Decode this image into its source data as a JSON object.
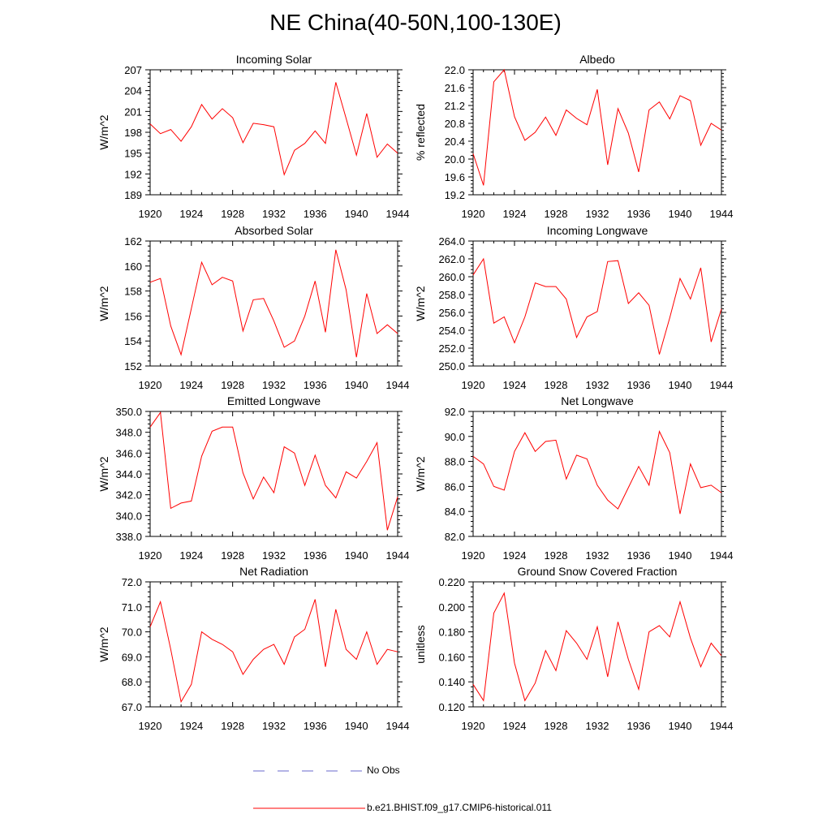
{
  "page_title": "NE China(40-50N,100-130E)",
  "legend": {
    "obs_label": "No Obs",
    "obs_color": "#6a6acd",
    "model_label": "b.e21.BHIST.f09_g17.CMIP6-historical.011",
    "model_color": "#ff0000"
  },
  "chart_data": [
    {
      "type": "line",
      "title": "Incoming Solar",
      "ylabel": "W/m^2",
      "xlim": [
        1920,
        1944
      ],
      "ylim": [
        189,
        207
      ],
      "yticks": [
        "189",
        "192",
        "195",
        "198",
        "201",
        "204",
        "207"
      ],
      "ytick_values": [
        189,
        192,
        195,
        198,
        201,
        204,
        207
      ],
      "xticks": [
        "1920",
        "1924",
        "1928",
        "1932",
        "1936",
        "1940",
        "1944"
      ],
      "x": [
        1920,
        1921,
        1922,
        1923,
        1924,
        1925,
        1926,
        1927,
        1928,
        1929,
        1930,
        1931,
        1932,
        1933,
        1934,
        1935,
        1936,
        1937,
        1938,
        1939,
        1940,
        1941,
        1942,
        1943,
        1944
      ],
      "series": [
        {
          "values": [
            199.2,
            197.8,
            198.4,
            196.7,
            198.8,
            202.0,
            199.9,
            201.4,
            200.1,
            196.5,
            199.3,
            199.1,
            198.8,
            191.9,
            195.4,
            196.4,
            198.2,
            196.4,
            205.2,
            200.0,
            194.7,
            200.7,
            194.4,
            196.3,
            195.0
          ]
        }
      ]
    },
    {
      "type": "line",
      "title": "Albedo",
      "ylabel": "% reflected",
      "xlim": [
        1920,
        1944
      ],
      "ylim": [
        19.2,
        22.0
      ],
      "yticks": [
        "19.2",
        "19.6",
        "20.0",
        "20.4",
        "20.8",
        "21.2",
        "21.6",
        "22.0"
      ],
      "ytick_values": [
        19.2,
        19.6,
        20.0,
        20.4,
        20.8,
        21.2,
        21.6,
        22.0
      ],
      "xticks": [
        "1920",
        "1924",
        "1928",
        "1932",
        "1936",
        "1940",
        "1944"
      ],
      "x": [
        1920,
        1921,
        1922,
        1923,
        1924,
        1925,
        1926,
        1927,
        1928,
        1929,
        1930,
        1931,
        1932,
        1933,
        1934,
        1935,
        1936,
        1937,
        1938,
        1939,
        1940,
        1941,
        1942,
        1943,
        1944
      ],
      "series": [
        {
          "values": [
            20.12,
            19.41,
            21.73,
            22.0,
            20.95,
            20.42,
            20.6,
            20.94,
            20.53,
            21.1,
            20.91,
            20.77,
            21.56,
            19.87,
            21.13,
            20.58,
            19.71,
            21.1,
            21.28,
            20.9,
            21.42,
            21.31,
            20.31,
            20.8,
            20.65
          ]
        }
      ]
    },
    {
      "type": "line",
      "title": "Absorbed Solar",
      "ylabel": "W/m^2",
      "xlim": [
        1920,
        1944
      ],
      "ylim": [
        152,
        162
      ],
      "yticks": [
        "152",
        "154",
        "156",
        "158",
        "160",
        "162"
      ],
      "ytick_values": [
        152,
        154,
        156,
        158,
        160,
        162
      ],
      "xticks": [
        "1920",
        "1924",
        "1928",
        "1932",
        "1936",
        "1940",
        "1944"
      ],
      "x": [
        1920,
        1921,
        1922,
        1923,
        1924,
        1925,
        1926,
        1927,
        1928,
        1929,
        1930,
        1931,
        1932,
        1933,
        1934,
        1935,
        1936,
        1937,
        1938,
        1939,
        1940,
        1941,
        1942,
        1943,
        1944
      ],
      "series": [
        {
          "values": [
            158.7,
            159.0,
            155.2,
            152.9,
            156.6,
            160.3,
            158.5,
            159.1,
            158.8,
            154.8,
            157.3,
            157.4,
            155.6,
            153.5,
            154.0,
            156.0,
            158.8,
            154.7,
            161.3,
            158.1,
            152.7,
            157.8,
            154.6,
            155.3,
            154.6
          ]
        }
      ]
    },
    {
      "type": "line",
      "title": "Incoming Longwave",
      "ylabel": "W/m^2",
      "xlim": [
        1920,
        1944
      ],
      "ylim": [
        250.0,
        264.0
      ],
      "yticks": [
        "250.0",
        "252.0",
        "254.0",
        "256.0",
        "258.0",
        "260.0",
        "262.0",
        "264.0"
      ],
      "ytick_values": [
        250,
        252,
        254,
        256,
        258,
        260,
        262,
        264
      ],
      "xticks": [
        "1920",
        "1924",
        "1928",
        "1932",
        "1936",
        "1940",
        "1944"
      ],
      "x": [
        1920,
        1921,
        1922,
        1923,
        1924,
        1925,
        1926,
        1927,
        1928,
        1929,
        1930,
        1931,
        1932,
        1933,
        1934,
        1935,
        1936,
        1937,
        1938,
        1939,
        1940,
        1941,
        1942,
        1943,
        1944
      ],
      "series": [
        {
          "values": [
            260.2,
            262.0,
            254.8,
            255.5,
            252.6,
            255.5,
            259.3,
            258.9,
            258.9,
            257.5,
            253.2,
            255.5,
            256.1,
            261.7,
            261.8,
            257.0,
            258.2,
            256.8,
            251.3,
            255.4,
            259.8,
            257.5,
            261.0,
            252.7,
            256.4
          ]
        }
      ]
    },
    {
      "type": "line",
      "title": "Emitted Longwave",
      "ylabel": "W/m^2",
      "xlim": [
        1920,
        1944
      ],
      "ylim": [
        338.0,
        350.0
      ],
      "yticks": [
        "338.0",
        "340.0",
        "342.0",
        "344.0",
        "346.0",
        "348.0",
        "350.0"
      ],
      "ytick_values": [
        338,
        340,
        342,
        344,
        346,
        348,
        350
      ],
      "xticks": [
        "1920",
        "1924",
        "1928",
        "1932",
        "1936",
        "1940",
        "1944"
      ],
      "x": [
        1920,
        1921,
        1922,
        1923,
        1924,
        1925,
        1926,
        1927,
        1928,
        1929,
        1930,
        1931,
        1932,
        1933,
        1934,
        1935,
        1936,
        1937,
        1938,
        1939,
        1940,
        1941,
        1942,
        1943,
        1944
      ],
      "series": [
        {
          "values": [
            348.5,
            349.9,
            340.7,
            341.2,
            341.4,
            345.7,
            348.1,
            348.5,
            348.5,
            344.1,
            341.6,
            343.7,
            342.2,
            346.6,
            346.0,
            342.9,
            345.8,
            342.9,
            341.7,
            344.2,
            343.6,
            345.2,
            347.0,
            338.6,
            341.8
          ]
        }
      ]
    },
    {
      "type": "line",
      "title": "Net Longwave",
      "ylabel": "W/m^2",
      "xlim": [
        1920,
        1944
      ],
      "ylim": [
        82.0,
        92.0
      ],
      "yticks": [
        "82.0",
        "84.0",
        "86.0",
        "88.0",
        "90.0",
        "92.0"
      ],
      "ytick_values": [
        82,
        84,
        86,
        88,
        90,
        92
      ],
      "xticks": [
        "1920",
        "1924",
        "1928",
        "1932",
        "1936",
        "1940",
        "1944"
      ],
      "x": [
        1920,
        1921,
        1922,
        1923,
        1924,
        1925,
        1926,
        1927,
        1928,
        1929,
        1930,
        1931,
        1932,
        1933,
        1934,
        1935,
        1936,
        1937,
        1938,
        1939,
        1940,
        1941,
        1942,
        1943,
        1944
      ],
      "series": [
        {
          "values": [
            88.4,
            87.8,
            86.0,
            85.7,
            88.8,
            90.3,
            88.8,
            89.6,
            89.7,
            86.6,
            88.5,
            88.2,
            86.1,
            84.9,
            84.2,
            85.9,
            87.6,
            86.1,
            90.4,
            88.7,
            83.8,
            87.8,
            85.9,
            86.1,
            85.5
          ]
        }
      ]
    },
    {
      "type": "line",
      "title": "Net Radiation",
      "ylabel": "W/m^2",
      "xlim": [
        1920,
        1944
      ],
      "ylim": [
        67.0,
        72.0
      ],
      "yticks": [
        "67.0",
        "68.0",
        "69.0",
        "70.0",
        "71.0",
        "72.0"
      ],
      "ytick_values": [
        67,
        68,
        69,
        70,
        71,
        72
      ],
      "xticks": [
        "1920",
        "1924",
        "1928",
        "1932",
        "1936",
        "1940",
        "1944"
      ],
      "x": [
        1920,
        1921,
        1922,
        1923,
        1924,
        1925,
        1926,
        1927,
        1928,
        1929,
        1930,
        1931,
        1932,
        1933,
        1934,
        1935,
        1936,
        1937,
        1938,
        1939,
        1940,
        1941,
        1942,
        1943,
        1944
      ],
      "series": [
        {
          "values": [
            70.2,
            71.2,
            69.3,
            67.2,
            67.9,
            70.0,
            69.7,
            69.5,
            69.2,
            68.3,
            68.9,
            69.3,
            69.5,
            68.7,
            69.8,
            70.1,
            71.3,
            68.6,
            70.9,
            69.3,
            68.9,
            70.0,
            68.7,
            69.3,
            69.2
          ]
        }
      ]
    },
    {
      "type": "line",
      "title": "Ground Snow Covered Fraction",
      "ylabel": "unitless",
      "xlim": [
        1920,
        1944
      ],
      "ylim": [
        0.12,
        0.22
      ],
      "yticks": [
        "0.120",
        "0.140",
        "0.160",
        "0.180",
        "0.200",
        "0.220"
      ],
      "ytick_values": [
        0.12,
        0.14,
        0.16,
        0.18,
        0.2,
        0.22
      ],
      "xticks": [
        "1920",
        "1924",
        "1928",
        "1932",
        "1936",
        "1940",
        "1944"
      ],
      "x": [
        1920,
        1921,
        1922,
        1923,
        1924,
        1925,
        1926,
        1927,
        1928,
        1929,
        1930,
        1931,
        1932,
        1933,
        1934,
        1935,
        1936,
        1937,
        1938,
        1939,
        1940,
        1941,
        1942,
        1943,
        1944
      ],
      "series": [
        {
          "values": [
            0.138,
            0.125,
            0.195,
            0.211,
            0.155,
            0.125,
            0.139,
            0.165,
            0.149,
            0.181,
            0.171,
            0.158,
            0.184,
            0.144,
            0.188,
            0.158,
            0.134,
            0.18,
            0.185,
            0.176,
            0.204,
            0.175,
            0.152,
            0.171,
            0.161
          ]
        }
      ]
    }
  ]
}
